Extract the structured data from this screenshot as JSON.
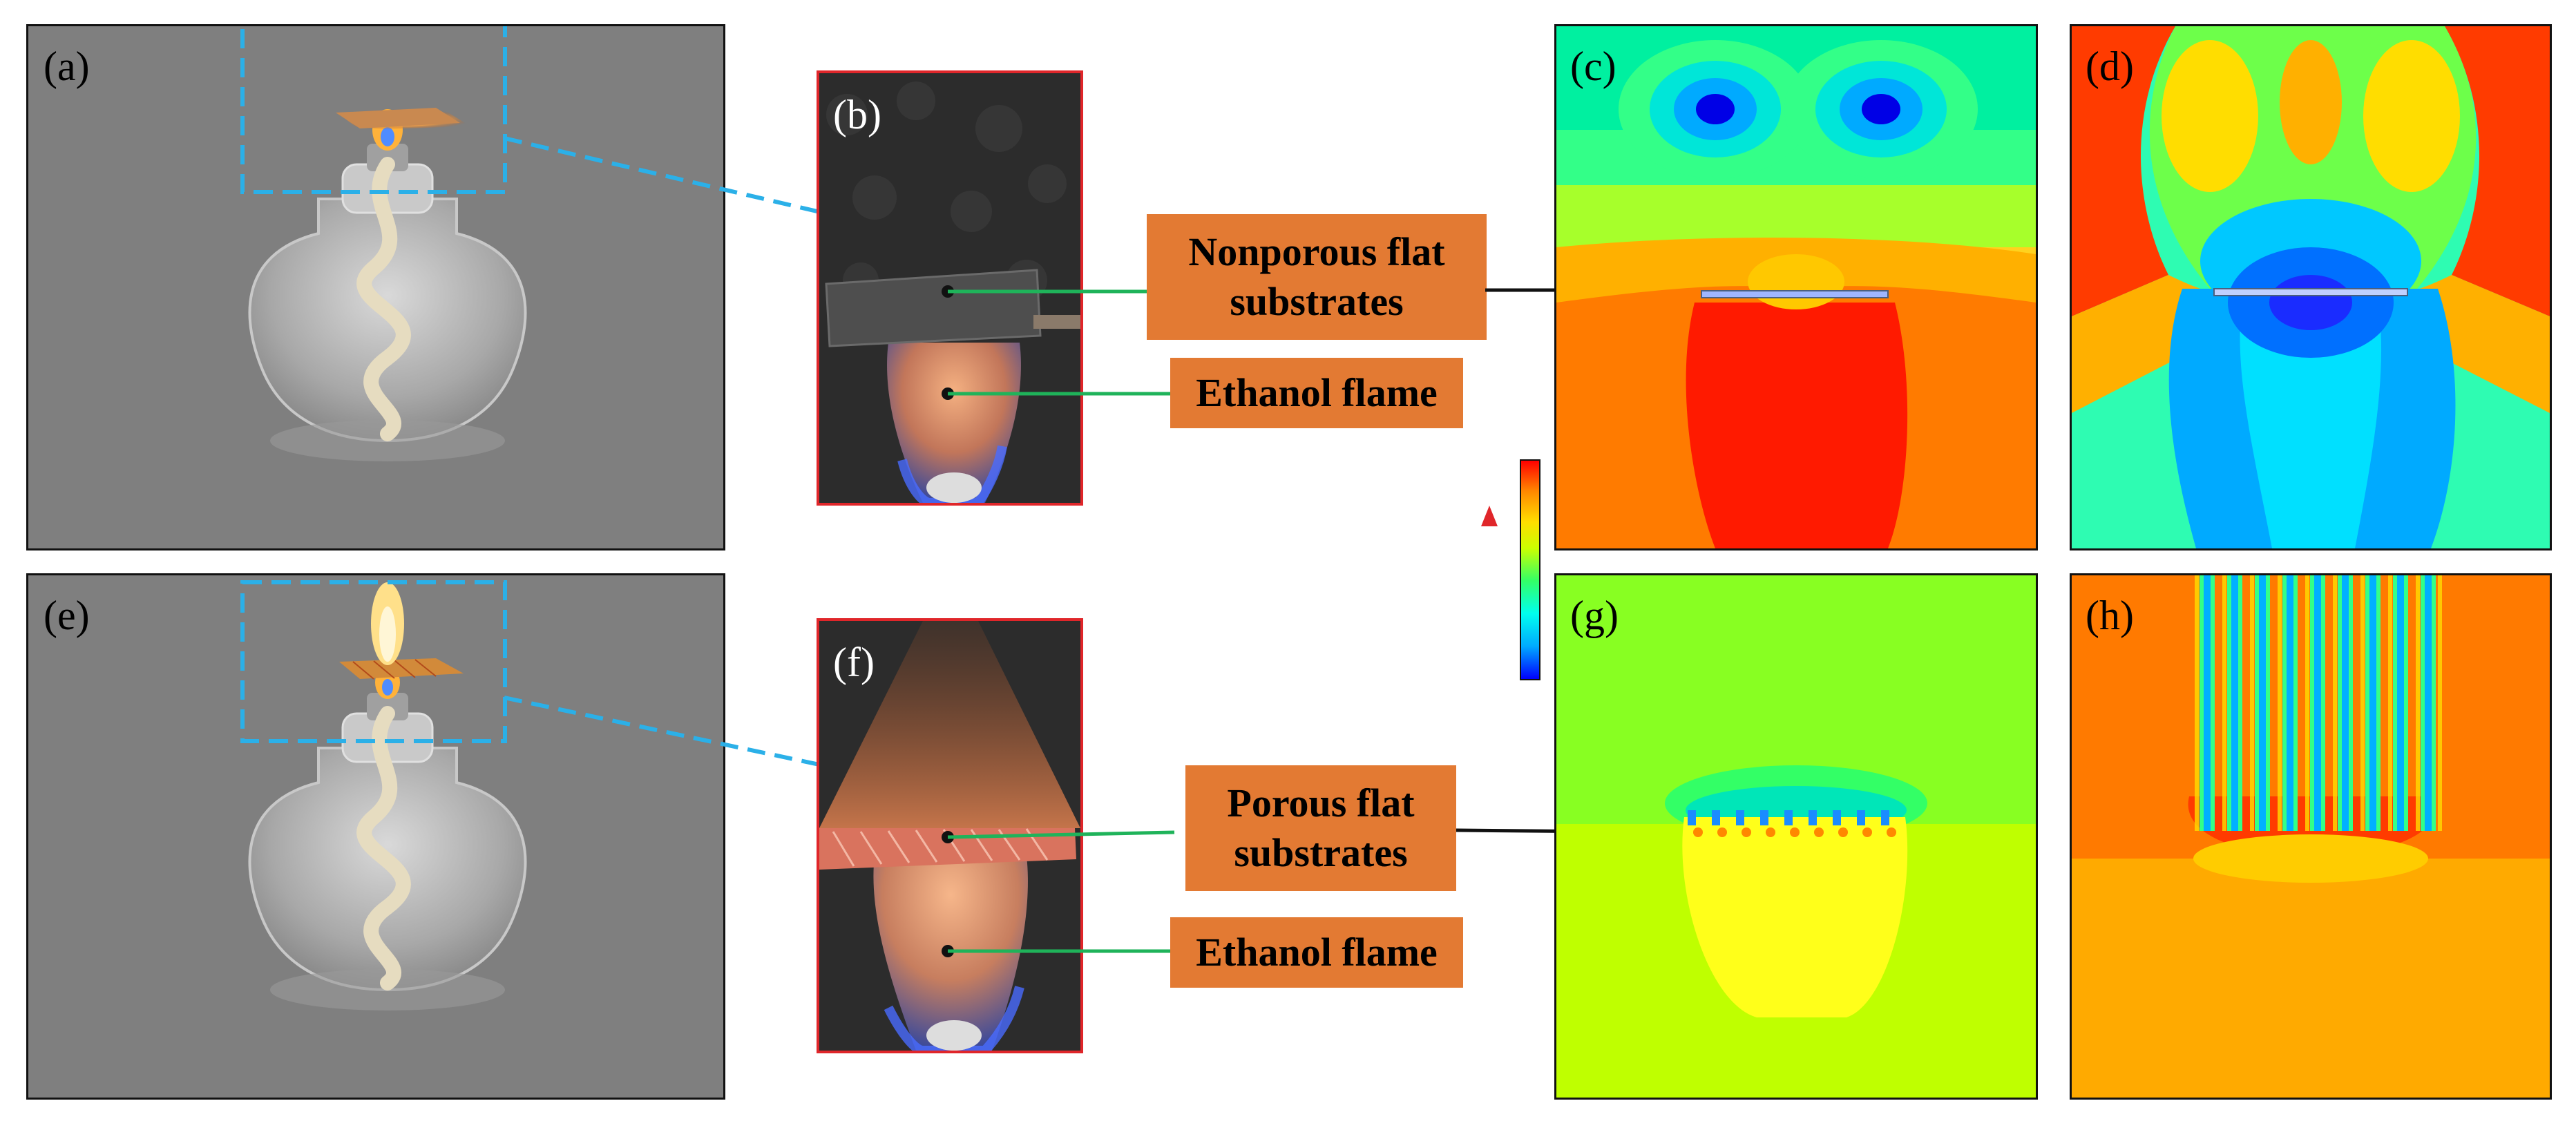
{
  "panels": {
    "a": "(a)",
    "b": "(b)",
    "c": "(c)",
    "d": "(d)",
    "e": "(e)",
    "f": "(f)",
    "g": "(g)",
    "h": "(h)"
  },
  "callouts": {
    "nonporous": "Nonporous flat\nsubstrates",
    "flame_top": "Ethanol flame",
    "porous": "Porous flat\nsubstrates",
    "flame_bottom": "Ethanol flame"
  },
  "colors": {
    "callout_bg": "#e37a33",
    "leader_line": "#1fb35a",
    "dash_box": "#2bb0e8",
    "photo_border": "#e0262a",
    "lamp_bg": "#7f7f7f"
  },
  "colorbar": {
    "stops": [
      "#0000ff",
      "#00aaff",
      "#00ffee",
      "#33ff66",
      "#ccff00",
      "#ffdd00",
      "#ff8800",
      "#ff0000"
    ]
  }
}
